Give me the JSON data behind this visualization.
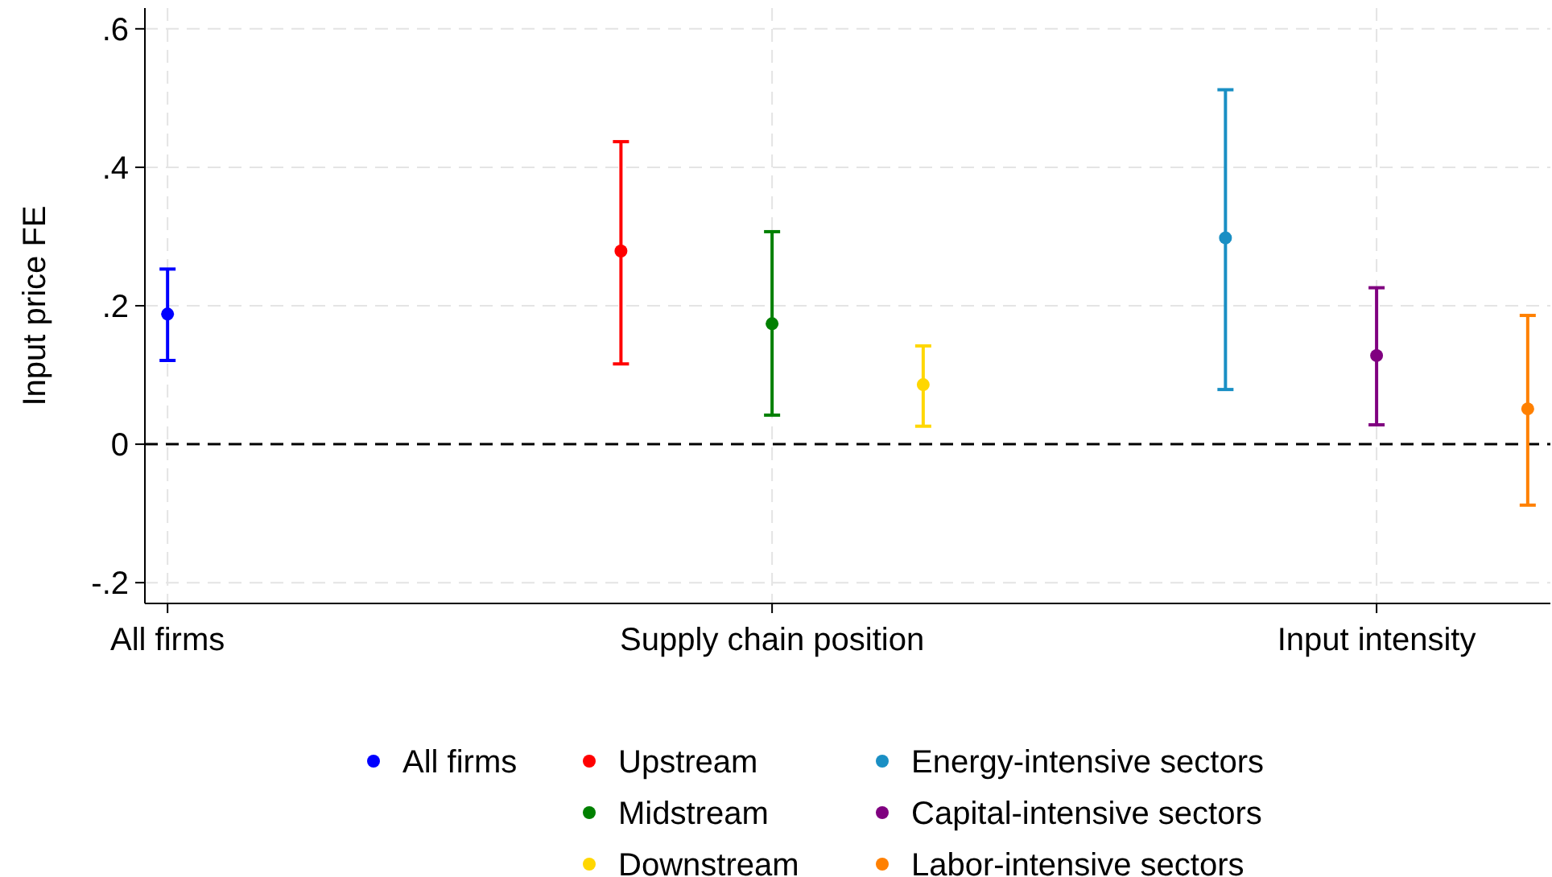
{
  "chart_data": {
    "type": "scatter",
    "ylabel": "Input price FE",
    "ylim": [
      -0.23,
      0.63
    ],
    "categories": [
      "All firms",
      null,
      null,
      null,
      "Supply chain position",
      null,
      null,
      null,
      "Input intensity",
      null
    ],
    "yticks": [
      {
        "value": -0.2,
        "label": "-.2"
      },
      {
        "value": 0,
        "label": "0"
      },
      {
        "value": 0.2,
        "label": ".2"
      },
      {
        "value": 0.4,
        "label": ".4"
      },
      {
        "value": 0.6,
        "label": ".6"
      }
    ],
    "grid": true,
    "legend": "bottom",
    "marker": "circle",
    "ref_lines": [
      {
        "axis": "y",
        "value": 0,
        "color": "#000000",
        "line_style": "dashed"
      }
    ],
    "series": [
      {
        "name": "All firms",
        "color": "#0000ff",
        "values": [
          0.188,
          null,
          null,
          null,
          null,
          null,
          null,
          null,
          null,
          null
        ],
        "errors": [
          [
            0.121,
            0.253
          ],
          null,
          null,
          null,
          null,
          null,
          null,
          null,
          null,
          null
        ]
      },
      {
        "name": "Upstream",
        "color": "#ff0000",
        "values": [
          null,
          null,
          null,
          0.279,
          null,
          null,
          null,
          null,
          null,
          null
        ],
        "errors": [
          null,
          null,
          null,
          [
            0.116,
            0.437
          ],
          null,
          null,
          null,
          null,
          null,
          null
        ]
      },
      {
        "name": "Midstream",
        "color": "#008000",
        "values": [
          null,
          null,
          null,
          null,
          0.174,
          null,
          null,
          null,
          null,
          null
        ],
        "errors": [
          null,
          null,
          null,
          null,
          [
            0.042,
            0.307
          ],
          null,
          null,
          null,
          null,
          null
        ]
      },
      {
        "name": "Downstream",
        "color": "#ffd700",
        "values": [
          null,
          null,
          null,
          null,
          null,
          0.086,
          null,
          null,
          null,
          null
        ],
        "errors": [
          null,
          null,
          null,
          null,
          null,
          [
            0.026,
            0.142
          ],
          null,
          null,
          null,
          null
        ]
      },
      {
        "name": "Energy-intensive sectors",
        "color": "#1a8fc4",
        "values": [
          null,
          null,
          null,
          null,
          null,
          null,
          null,
          0.298,
          null,
          null
        ],
        "errors": [
          null,
          null,
          null,
          null,
          null,
          null,
          null,
          [
            0.079,
            0.512
          ],
          null,
          null
        ]
      },
      {
        "name": "Capital-intensive sectors",
        "color": "#800080",
        "values": [
          null,
          null,
          null,
          null,
          null,
          null,
          null,
          null,
          0.128,
          null
        ],
        "errors": [
          null,
          null,
          null,
          null,
          null,
          null,
          null,
          null,
          [
            0.028,
            0.226
          ],
          null
        ]
      },
      {
        "name": "Labor-intensive sectors",
        "color": "#ff8000",
        "values": [
          null,
          null,
          null,
          null,
          null,
          null,
          null,
          null,
          null,
          0.051
        ],
        "errors": [
          null,
          null,
          null,
          null,
          null,
          null,
          null,
          null,
          null,
          [
            -0.088,
            0.186
          ]
        ]
      }
    ]
  }
}
